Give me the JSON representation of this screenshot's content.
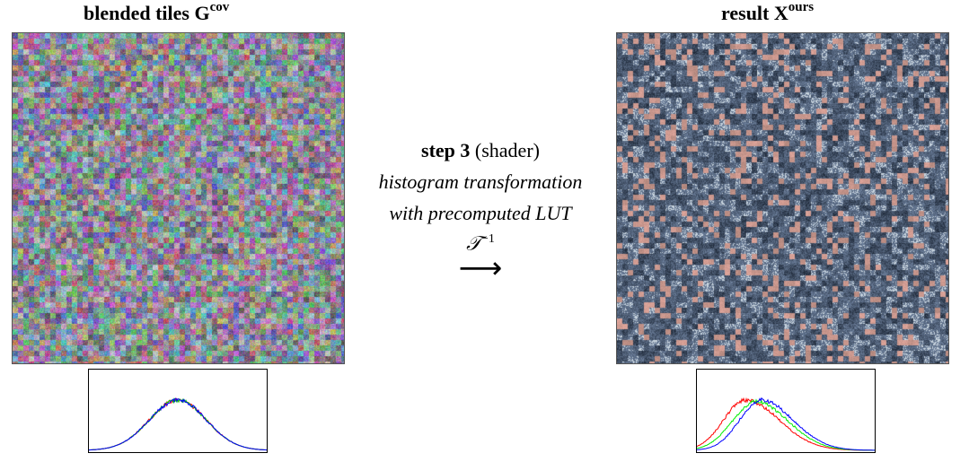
{
  "left_panel": {
    "title_main": "blended tiles G",
    "title_sup": "cov",
    "histogram": {
      "series": [
        {
          "color": "#ff0000",
          "mean": 0.5,
          "sd": 0.16,
          "skew": 0.0,
          "amp": 1.0
        },
        {
          "color": "#00cc00",
          "mean": 0.5,
          "sd": 0.16,
          "skew": 0.0,
          "amp": 1.0
        },
        {
          "color": "#0000ff",
          "mean": 0.5,
          "sd": 0.16,
          "skew": 0.0,
          "amp": 1.0
        }
      ]
    }
  },
  "right_panel": {
    "title_main": "result X",
    "title_sup": "ours",
    "histogram": {
      "series": [
        {
          "color": "#ff0000",
          "mean": 0.27,
          "sd": 0.12,
          "skew": 1.6,
          "amp": 1.0
        },
        {
          "color": "#00ee00",
          "mean": 0.33,
          "sd": 0.13,
          "skew": 1.4,
          "amp": 0.97
        },
        {
          "color": "#0000ff",
          "mean": 0.36,
          "sd": 0.12,
          "skew": 1.5,
          "amp": 1.0
        }
      ]
    }
  },
  "center": {
    "step_label": "step 3",
    "step_note": "(shader)",
    "line2": "histogram transformation",
    "line3": "with precomputed LUT",
    "symbol": "𝒯",
    "symbol_sup": "−1",
    "arrow": "⟶"
  }
}
